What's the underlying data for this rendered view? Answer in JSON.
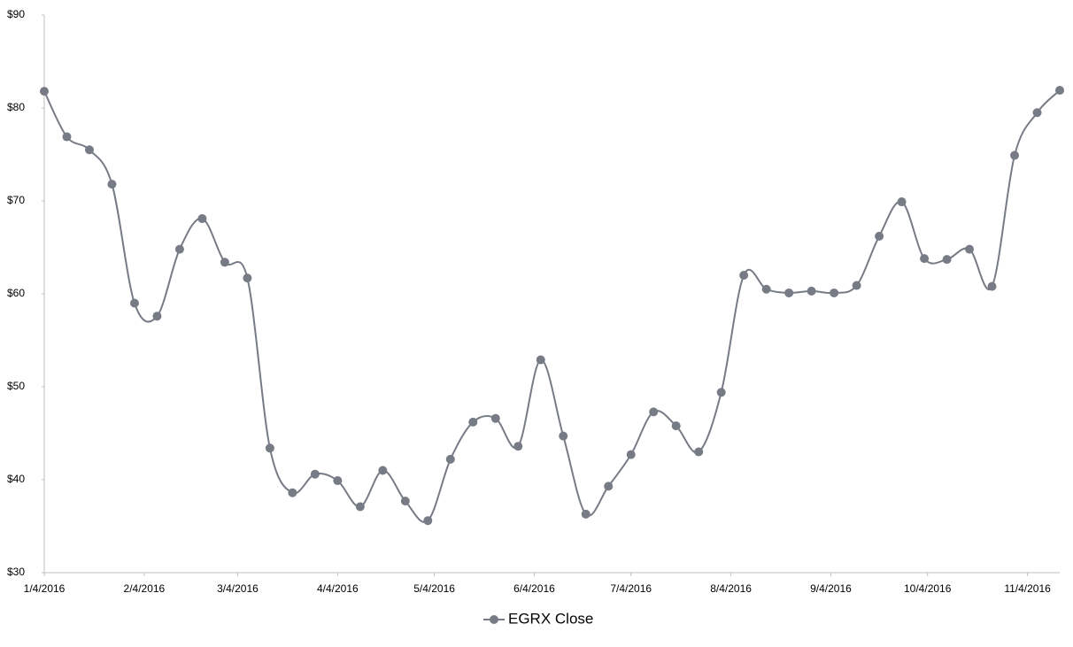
{
  "chart_data": {
    "type": "line",
    "x": [
      "1/4/2016",
      "1/11/2016",
      "1/18/2016",
      "1/25/2016",
      "2/1/2016",
      "2/8/2016",
      "2/15/2016",
      "2/22/2016",
      "2/29/2016",
      "3/7/2016",
      "3/14/2016",
      "3/21/2016",
      "3/28/2016",
      "4/4/2016",
      "4/11/2016",
      "4/18/2016",
      "4/25/2016",
      "5/2/2016",
      "5/9/2016",
      "5/16/2016",
      "5/23/2016",
      "5/30/2016",
      "6/6/2016",
      "6/13/2016",
      "6/20/2016",
      "6/27/2016",
      "7/4/2016",
      "7/11/2016",
      "7/18/2016",
      "7/25/2016",
      "8/1/2016",
      "8/8/2016",
      "8/15/2016",
      "8/22/2016",
      "8/29/2016",
      "9/5/2016",
      "9/12/2016",
      "9/19/2016",
      "9/26/2016",
      "10/3/2016",
      "10/10/2016",
      "10/17/2016",
      "10/24/2016",
      "10/31/2016",
      "11/7/2016",
      "11/14/2016"
    ],
    "series": [
      {
        "name": "EGRX Close",
        "color": "#767b85",
        "values": [
          81.8,
          76.9,
          75.5,
          71.8,
          59.0,
          57.6,
          64.8,
          68.1,
          63.4,
          61.7,
          43.4,
          38.6,
          40.6,
          39.9,
          37.1,
          41.0,
          37.7,
          35.6,
          42.2,
          46.2,
          46.6,
          43.6,
          52.9,
          44.7,
          36.3,
          39.3,
          42.7,
          47.3,
          45.8,
          43.0,
          49.4,
          62.0,
          60.5,
          60.1,
          60.3,
          60.1,
          60.9,
          66.2,
          69.9,
          63.8,
          63.7,
          64.8,
          60.8,
          74.9,
          79.5,
          81.9
        ]
      }
    ],
    "xlim": [
      "1/4/2016",
      "11/14/2016"
    ],
    "xticks": [
      "1/4/2016",
      "2/4/2016",
      "3/4/2016",
      "4/4/2016",
      "5/4/2016",
      "6/4/2016",
      "7/4/2016",
      "8/4/2016",
      "9/4/2016",
      "10/4/2016",
      "11/4/2016"
    ],
    "ylim": [
      30,
      90
    ],
    "yticks": [
      {
        "value": 30,
        "label": "$30"
      },
      {
        "value": 40,
        "label": "$40"
      },
      {
        "value": 50,
        "label": "$50"
      },
      {
        "value": 60,
        "label": "$60"
      },
      {
        "value": 70,
        "label": "$70"
      },
      {
        "value": 80,
        "label": "$80"
      },
      {
        "value": 90,
        "label": "$90"
      }
    ],
    "grid": false,
    "legend": "bottom"
  }
}
